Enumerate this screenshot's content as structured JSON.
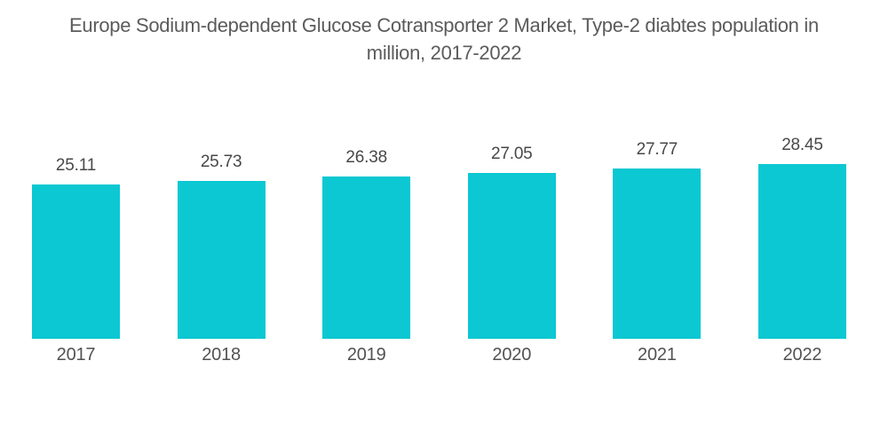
{
  "title": {
    "lines": [
      "Europe Sodium-dependent Glucose Cotransporter 2 Market, Type-2 diabtes population in",
      "million, 2017-2022"
    ]
  },
  "chart_data": {
    "type": "bar",
    "title": "Europe Sodium-dependent Glucose Cotransporter 2 Market, Type-2 diabtes population in million, 2017-2022",
    "categories": [
      "2017",
      "2018",
      "2019",
      "2020",
      "2021",
      "2022"
    ],
    "values": [
      25.11,
      25.73,
      26.38,
      27.05,
      27.77,
      28.45
    ],
    "value_labels": [
      "25.11",
      "25.73",
      "26.38",
      "27.05",
      "27.77",
      "28.45"
    ],
    "xlabel": "",
    "ylabel": "",
    "ylim": [
      0,
      28.45
    ],
    "grid": false,
    "legend": false,
    "data_labels_shown": true,
    "bar_color": "#0bc8d2"
  },
  "colors": {
    "bar": "#0bc8d2",
    "title_text": "#5b5b5d",
    "value_text": "#48484a",
    "year_text": "#525254",
    "background": "#ffffff"
  }
}
